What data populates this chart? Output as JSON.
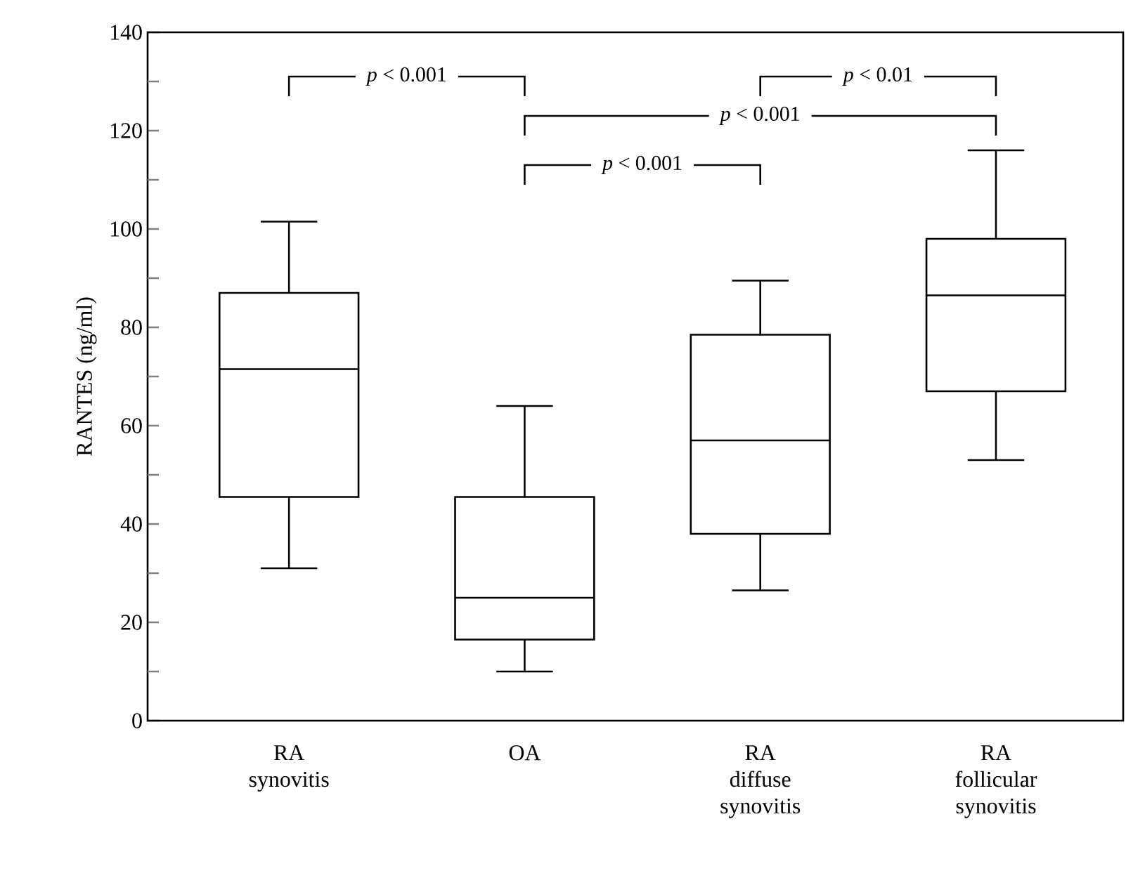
{
  "chart_data": {
    "type": "box",
    "ylabel": "RANTES  (ng/ml)",
    "categories": [
      "RA synovitis",
      "OA",
      "RA diffuse synovitis",
      "RA follicular synovitis"
    ],
    "color": "#000000",
    "boxes": [
      {
        "low": 31,
        "q1": 45.5,
        "median": 71.5,
        "q3": 87,
        "high": 101.5
      },
      {
        "low": 10,
        "q1": 16.5,
        "median": 25,
        "q3": 45.5,
        "high": 64
      },
      {
        "low": 26.5,
        "q1": 38,
        "median": 57,
        "q3": 78.5,
        "high": 89.5
      },
      {
        "low": 53,
        "q1": 67,
        "median": 86.5,
        "q3": 98,
        "high": 116
      }
    ],
    "ylim": [
      0,
      140
    ],
    "yticks": [
      0,
      {
        "value": 10,
        "label": null
      },
      20,
      {
        "value": 30,
        "label": null
      },
      40,
      {
        "value": 50,
        "label": null
      },
      60,
      {
        "value": 70,
        "label": null
      },
      80,
      {
        "value": 90,
        "label": null
      },
      100,
      {
        "value": 110,
        "label": null
      },
      120,
      {
        "value": 130,
        "label": null
      },
      140
    ],
    "annotations": [
      "*p* < 0.001",
      "*p* < 0.01",
      "*p* < 0.001",
      "*p* < 0.001"
    ]
  }
}
